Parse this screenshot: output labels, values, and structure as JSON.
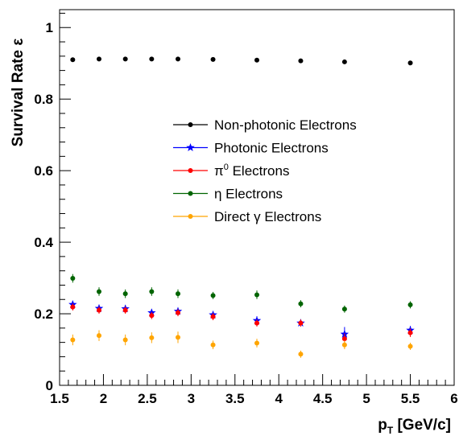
{
  "chart_data": {
    "type": "scatter",
    "xlabel_main": "p",
    "xlabel_sub": "T",
    "xlabel_rest": " [GeV/c]",
    "ylabel": "Survival Rate ε",
    "xlim": [
      1.5,
      6
    ],
    "ylim": [
      0,
      1.05
    ],
    "x_ticks": [
      "1.5",
      "2",
      "2.5",
      "3",
      "3.5",
      "4",
      "4.5",
      "5",
      "5.5",
      "6"
    ],
    "y_ticks": [
      "0",
      "0.2",
      "0.4",
      "0.6",
      "0.8",
      "1"
    ],
    "grid": false,
    "legend_position": "center-right",
    "x": [
      1.65,
      1.95,
      2.25,
      2.55,
      2.85,
      3.25,
      3.75,
      4.25,
      4.75,
      5.5
    ],
    "series": [
      {
        "name": "Non-photonic Electrons",
        "color": "#000000",
        "marker": "circle",
        "values": [
          0.91,
          0.912,
          0.912,
          0.912,
          0.912,
          0.911,
          0.909,
          0.907,
          0.904,
          0.901
        ],
        "errors": [
          0.004,
          0.004,
          0.004,
          0.004,
          0.004,
          0.004,
          0.004,
          0.004,
          0.004,
          0.004
        ]
      },
      {
        "name": "Photonic Electrons",
        "color": "#0000ff",
        "marker": "star",
        "values": [
          0.226,
          0.215,
          0.214,
          0.203,
          0.207,
          0.197,
          0.181,
          0.174,
          0.143,
          0.154
        ],
        "errors": [
          0.01,
          0.01,
          0.01,
          0.01,
          0.01,
          0.01,
          0.012,
          0.01,
          0.02,
          0.012
        ]
      },
      {
        "name": "π⁰ Electrons",
        "name_base": "π",
        "name_sup": "0",
        "name_rest": " Electrons",
        "color": "#ff0000",
        "marker": "circle",
        "values": [
          0.219,
          0.21,
          0.21,
          0.195,
          0.203,
          0.192,
          0.174,
          0.174,
          0.13,
          0.147
        ],
        "errors": [
          0.01,
          0.01,
          0.01,
          0.01,
          0.01,
          0.01,
          0.01,
          0.01,
          0.015,
          0.012
        ]
      },
      {
        "name": "η Electrons",
        "color": "#006400",
        "marker": "circle",
        "values": [
          0.299,
          0.262,
          0.256,
          0.262,
          0.256,
          0.251,
          0.253,
          0.228,
          0.213,
          0.225
        ],
        "errors": [
          0.012,
          0.012,
          0.012,
          0.012,
          0.012,
          0.01,
          0.012,
          0.01,
          0.01,
          0.01
        ]
      },
      {
        "name": "Direct γ Electrons",
        "color": "#ffa500",
        "marker": "circle",
        "values": [
          0.127,
          0.139,
          0.127,
          0.133,
          0.134,
          0.113,
          0.118,
          0.087,
          0.113,
          0.109
        ],
        "errors": [
          0.015,
          0.015,
          0.015,
          0.015,
          0.016,
          0.012,
          0.012,
          0.01,
          0.012,
          0.01
        ]
      }
    ]
  }
}
